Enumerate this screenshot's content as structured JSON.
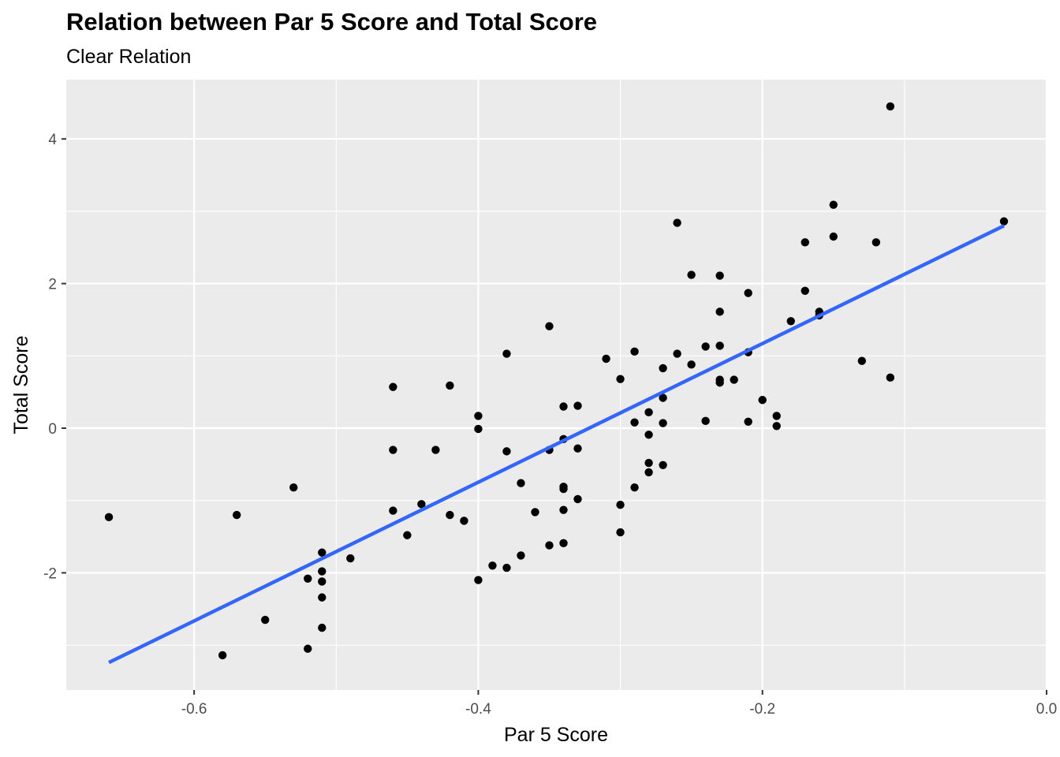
{
  "chart_data": {
    "type": "scatter",
    "title": "Relation between Par 5 Score and Total Score",
    "subtitle": "Clear Relation",
    "xlabel": "Par 5 Score",
    "ylabel": "Total Score",
    "xlim": [
      -0.69,
      0.0
    ],
    "ylim": [
      -3.62,
      4.82
    ],
    "x_ticks": [
      -0.6,
      -0.4,
      -0.2,
      0.0
    ],
    "x_tick_labels": [
      "-0.6",
      "-0.4",
      "-0.2",
      "0.0"
    ],
    "y_ticks": [
      -2,
      0,
      2,
      4
    ],
    "y_tick_labels": [
      "-2",
      "0",
      "2",
      "4"
    ],
    "grid": true,
    "points": [
      [
        -0.66,
        -1.23
      ],
      [
        -0.58,
        -3.14
      ],
      [
        -0.57,
        -1.2
      ],
      [
        -0.55,
        -2.65
      ],
      [
        -0.53,
        -0.82
      ],
      [
        -0.52,
        -2.08
      ],
      [
        -0.52,
        -3.05
      ],
      [
        -0.51,
        -1.72
      ],
      [
        -0.51,
        -1.98
      ],
      [
        -0.51,
        -2.12
      ],
      [
        -0.51,
        -2.34
      ],
      [
        -0.51,
        -2.76
      ],
      [
        -0.49,
        -1.8
      ],
      [
        -0.46,
        0.57
      ],
      [
        -0.46,
        -0.3
      ],
      [
        -0.46,
        -1.14
      ],
      [
        -0.45,
        -1.48
      ],
      [
        -0.44,
        -1.05
      ],
      [
        -0.43,
        -0.3
      ],
      [
        -0.42,
        0.59
      ],
      [
        -0.42,
        -1.2
      ],
      [
        -0.41,
        -1.28
      ],
      [
        -0.4,
        0.17
      ],
      [
        -0.4,
        -0.01
      ],
      [
        -0.4,
        -2.1
      ],
      [
        -0.39,
        -1.9
      ],
      [
        -0.38,
        1.03
      ],
      [
        -0.38,
        -0.32
      ],
      [
        -0.38,
        -1.93
      ],
      [
        -0.37,
        -0.76
      ],
      [
        -0.37,
        -1.76
      ],
      [
        -0.36,
        -1.16
      ],
      [
        -0.35,
        1.41
      ],
      [
        -0.35,
        -0.3
      ],
      [
        -0.35,
        -1.62
      ],
      [
        -0.34,
        0.3
      ],
      [
        -0.34,
        -0.15
      ],
      [
        -0.34,
        -0.81
      ],
      [
        -0.34,
        -0.84
      ],
      [
        -0.34,
        -1.13
      ],
      [
        -0.34,
        -1.59
      ],
      [
        -0.33,
        0.31
      ],
      [
        -0.33,
        -0.28
      ],
      [
        -0.33,
        -0.98
      ],
      [
        -0.31,
        0.96
      ],
      [
        -0.3,
        0.68
      ],
      [
        -0.3,
        -1.06
      ],
      [
        -0.3,
        -1.44
      ],
      [
        -0.29,
        1.06
      ],
      [
        -0.29,
        0.08
      ],
      [
        -0.29,
        -0.82
      ],
      [
        -0.28,
        0.22
      ],
      [
        -0.28,
        -0.09
      ],
      [
        -0.28,
        -0.48
      ],
      [
        -0.28,
        -0.61
      ],
      [
        -0.27,
        0.83
      ],
      [
        -0.27,
        0.42
      ],
      [
        -0.27,
        0.07
      ],
      [
        -0.27,
        -0.51
      ],
      [
        -0.26,
        2.84
      ],
      [
        -0.26,
        1.03
      ],
      [
        -0.25,
        2.12
      ],
      [
        -0.25,
        0.88
      ],
      [
        -0.24,
        1.13
      ],
      [
        -0.24,
        0.1
      ],
      [
        -0.23,
        2.11
      ],
      [
        -0.23,
        1.61
      ],
      [
        -0.23,
        1.14
      ],
      [
        -0.23,
        0.67
      ],
      [
        -0.23,
        0.63
      ],
      [
        -0.22,
        0.67
      ],
      [
        -0.21,
        1.87
      ],
      [
        -0.21,
        1.05
      ],
      [
        -0.21,
        0.09
      ],
      [
        -0.2,
        0.39
      ],
      [
        -0.19,
        0.17
      ],
      [
        -0.19,
        0.03
      ],
      [
        -0.18,
        1.48
      ],
      [
        -0.17,
        2.57
      ],
      [
        -0.17,
        1.9
      ],
      [
        -0.16,
        1.61
      ],
      [
        -0.16,
        1.56
      ],
      [
        -0.15,
        3.09
      ],
      [
        -0.15,
        2.65
      ],
      [
        -0.13,
        0.93
      ],
      [
        -0.12,
        2.57
      ],
      [
        -0.11,
        4.45
      ],
      [
        -0.11,
        0.7
      ],
      [
        -0.03,
        2.86
      ]
    ],
    "trend_line": {
      "x": [
        -0.66,
        -0.03
      ],
      "y": [
        -3.24,
        2.8
      ],
      "color": "#3366FF"
    },
    "colors": {
      "panel": "#EBEBEB",
      "grid": "#FFFFFF",
      "points": "#000000",
      "trend": "#3366FF"
    }
  }
}
